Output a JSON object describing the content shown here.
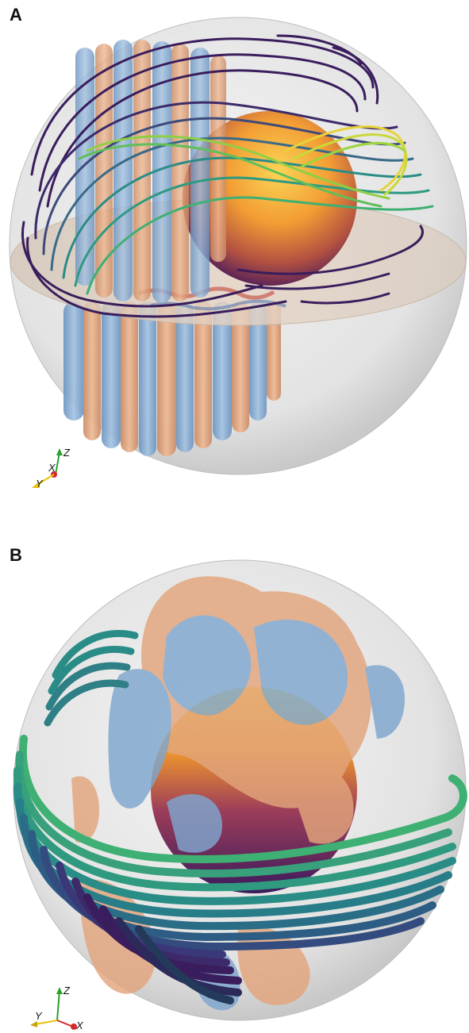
{
  "panel_a": {
    "letter": "A",
    "axes": {
      "z_label": "Z",
      "x_label": "X",
      "y_label": "Y"
    }
  },
  "panel_b": {
    "letter": "B",
    "axes": {
      "z_label": "Z",
      "y_label": "Y",
      "x_label": "X"
    }
  },
  "colors": {
    "sphere_shell": "#d9d9d9",
    "inner_core_hot": "#f6a623",
    "inner_core_cool": "#4a1b5e",
    "orange_isosurface": "#e2a57c",
    "blue_isosurface": "#7fa6cf",
    "fieldline_purple": "#3a1d5c",
    "fieldline_teal": "#2a8c86",
    "fieldline_green": "#3fb073",
    "fieldline_yellow": "#e8d23a",
    "axis_z": "#2ca02c",
    "axis_x": "#d62728",
    "axis_y": "#e8c20c"
  }
}
